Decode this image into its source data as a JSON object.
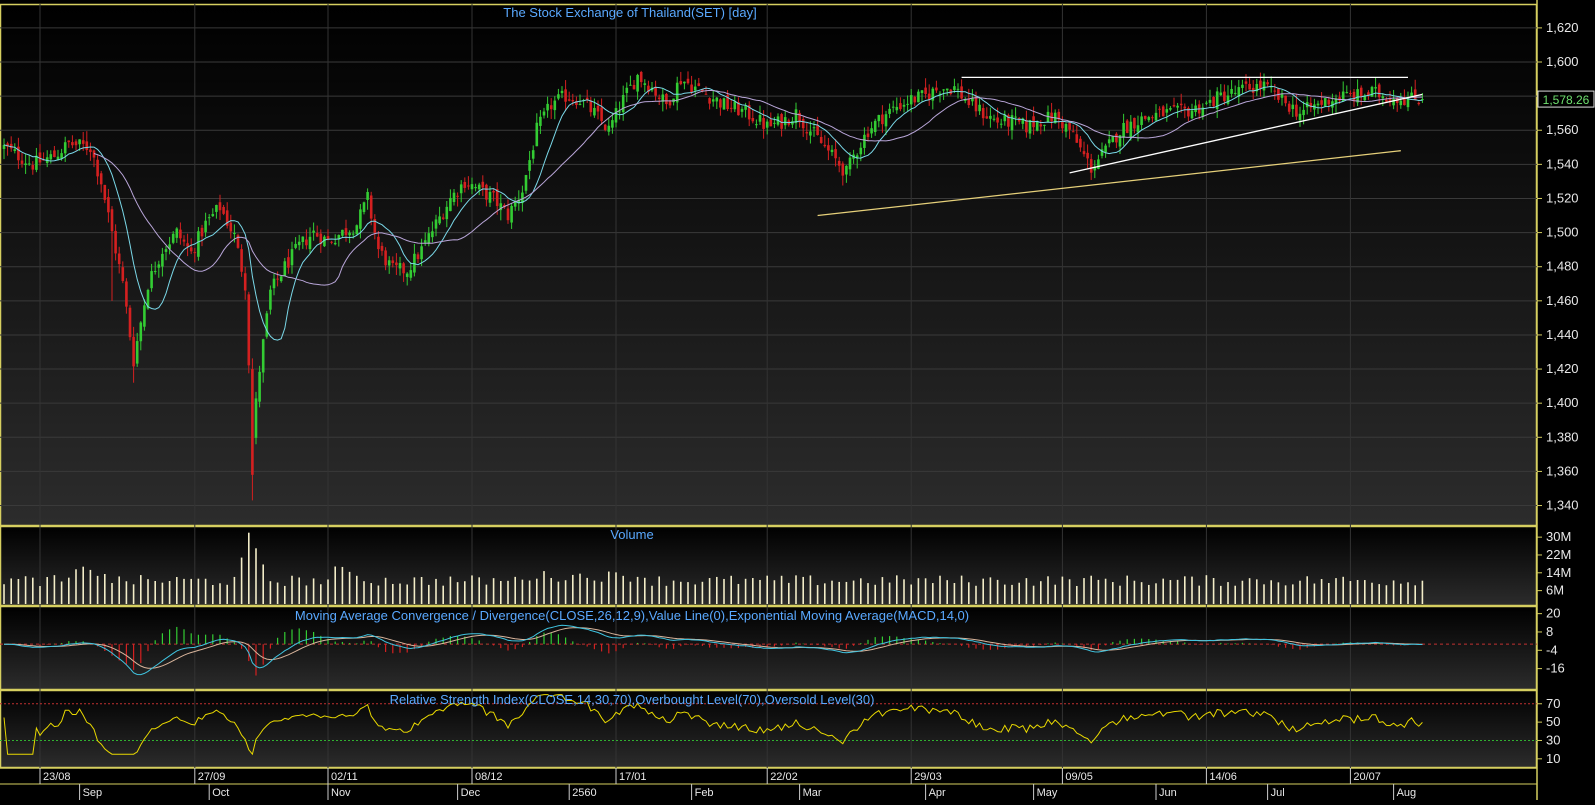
{
  "chart_data": {
    "type": "candlestick",
    "price_panel": {
      "title": "The Stock Exchange of Thailand(SET) [day]",
      "yticks": [
        "1,620",
        "1,600",
        "1,580",
        "1,560",
        "1,540",
        "1,520",
        "1,500",
        "1,480",
        "1,460",
        "1,440",
        "1,420",
        "1,400",
        "1,380",
        "1,360",
        "1,340"
      ],
      "ylim": [
        1328,
        1634
      ],
      "last_price": "1,578.26",
      "anchors": [
        [
          0,
          1550
        ],
        [
          8,
          1540
        ],
        [
          14,
          1545
        ],
        [
          18,
          1552
        ],
        [
          24,
          1550
        ],
        [
          27,
          1530
        ],
        [
          30,
          1500
        ],
        [
          33,
          1470
        ],
        [
          36,
          1425
        ],
        [
          40,
          1470
        ],
        [
          44,
          1490
        ],
        [
          48,
          1500
        ],
        [
          52,
          1488
        ],
        [
          56,
          1505
        ],
        [
          60,
          1515
        ],
        [
          64,
          1498
        ],
        [
          67,
          1470
        ],
        [
          69,
          1380
        ],
        [
          71,
          1420
        ],
        [
          74,
          1465
        ],
        [
          78,
          1480
        ],
        [
          82,
          1492
        ],
        [
          86,
          1500
        ],
        [
          90,
          1495
        ],
        [
          94,
          1500
        ],
        [
          98,
          1505
        ],
        [
          101,
          1520
        ],
        [
          104,
          1490
        ],
        [
          108,
          1478
        ],
        [
          112,
          1478
        ],
        [
          116,
          1490
        ],
        [
          120,
          1505
        ],
        [
          124,
          1520
        ],
        [
          128,
          1530
        ],
        [
          132,
          1525
        ],
        [
          136,
          1520
        ],
        [
          140,
          1510
        ],
        [
          144,
          1525
        ],
        [
          148,
          1560
        ],
        [
          152,
          1575
        ],
        [
          156,
          1580
        ],
        [
          160,
          1578
        ],
        [
          164,
          1570
        ],
        [
          168,
          1560
        ],
        [
          172,
          1578
        ],
        [
          176,
          1592
        ],
        [
          180,
          1585
        ],
        [
          184,
          1575
        ],
        [
          188,
          1590
        ],
        [
          192,
          1585
        ],
        [
          196,
          1580
        ],
        [
          200,
          1575
        ],
        [
          204,
          1572
        ],
        [
          208,
          1568
        ],
        [
          212,
          1562
        ],
        [
          216,
          1565
        ],
        [
          220,
          1570
        ],
        [
          224,
          1560
        ],
        [
          228,
          1550
        ],
        [
          232,
          1540
        ],
        [
          234,
          1535
        ],
        [
          236,
          1545
        ],
        [
          240,
          1560
        ],
        [
          244,
          1568
        ],
        [
          248,
          1574
        ],
        [
          252,
          1578
        ],
        [
          256,
          1580
        ],
        [
          260,
          1585
        ],
        [
          264,
          1585
        ],
        [
          268,
          1576
        ],
        [
          272,
          1570
        ],
        [
          276,
          1565
        ],
        [
          280,
          1565
        ],
        [
          284,
          1562
        ],
        [
          288,
          1566
        ],
        [
          292,
          1568
        ],
        [
          296,
          1560
        ],
        [
          300,
          1545
        ],
        [
          302,
          1538
        ],
        [
          306,
          1548
        ],
        [
          310,
          1560
        ],
        [
          314,
          1565
        ],
        [
          318,
          1568
        ],
        [
          322,
          1570
        ],
        [
          326,
          1570
        ],
        [
          330,
          1572
        ],
        [
          334,
          1575
        ],
        [
          338,
          1580
        ],
        [
          342,
          1582
        ],
        [
          346,
          1585
        ],
        [
          350,
          1586
        ],
        [
          352,
          1582
        ],
        [
          356,
          1576
        ],
        [
          360,
          1570
        ],
        [
          364,
          1574
        ],
        [
          368,
          1578
        ],
        [
          372,
          1580
        ],
        [
          376,
          1580
        ],
        [
          380,
          1582
        ],
        [
          384,
          1580
        ],
        [
          388,
          1579
        ],
        [
          392,
          1578.26
        ]
      ],
      "overlay_lines": [
        {
          "x": [
            266,
            390
          ],
          "y": [
            1591,
            1591
          ],
          "color": "#ffffff"
        },
        {
          "x": [
            296,
            394
          ],
          "y": [
            1535,
            1581
          ],
          "color": "#ffffff"
        },
        {
          "x": [
            226,
            388
          ],
          "y": [
            1510,
            1548
          ],
          "color": "#e6d07a"
        }
      ]
    },
    "volume_panel": {
      "title": "Volume",
      "yticks": [
        "30M",
        "22M",
        "14M",
        "6M"
      ],
      "ylim": [
        0,
        35
      ]
    },
    "macd_panel": {
      "title": "Moving Average Convergence / Divergence(CLOSE,26,12,9),Value Line(0),Exponential Moving Average(MACD,14,0)",
      "yticks": [
        "20",
        "8",
        "-4",
        "-16"
      ],
      "ylim": [
        -30,
        25
      ]
    },
    "rsi_panel": {
      "title": "Relative Strength Index(CLOSE,14,30,70),Overbought Level(70),Oversold Level(30)",
      "yticks": [
        "70",
        "50",
        "30",
        "10"
      ],
      "ylim": [
        0,
        85
      ],
      "overbought": 70,
      "oversold": 30
    },
    "date_axis": {
      "upper": [
        {
          "i": 10,
          "label": "23/08"
        },
        {
          "i": 53,
          "label": "27/09"
        },
        {
          "i": 90,
          "label": "02/11"
        },
        {
          "i": 130,
          "label": "08/12"
        },
        {
          "i": 170,
          "label": "17/01"
        },
        {
          "i": 212,
          "label": "22/02"
        },
        {
          "i": 252,
          "label": "29/03"
        },
        {
          "i": 294,
          "label": "09/05"
        },
        {
          "i": 334,
          "label": "14/06"
        },
        {
          "i": 374,
          "label": "20/07"
        }
      ],
      "lower": [
        {
          "i": 21,
          "label": "Sep"
        },
        {
          "i": 57,
          "label": "Oct"
        },
        {
          "i": 90,
          "label": "Nov"
        },
        {
          "i": 126,
          "label": "Dec"
        },
        {
          "i": 157,
          "label": "2560"
        },
        {
          "i": 191,
          "label": "Feb"
        },
        {
          "i": 221,
          "label": "Mar"
        },
        {
          "i": 256,
          "label": "Apr"
        },
        {
          "i": 286,
          "label": "May"
        },
        {
          "i": 320,
          "label": "Jun"
        },
        {
          "i": 351,
          "label": "Jul"
        },
        {
          "i": 386,
          "label": "Aug"
        }
      ]
    },
    "colors": {
      "up": "#33cc33",
      "down": "#d42020",
      "ma_short": "#7ad8e8",
      "ma_long": "#b9a6d9",
      "volume": "#f3edc8",
      "macd": "#40c4e0",
      "signal": "#d9b59c",
      "rsi": "#e8d800",
      "frame": "#d6cf60"
    }
  }
}
